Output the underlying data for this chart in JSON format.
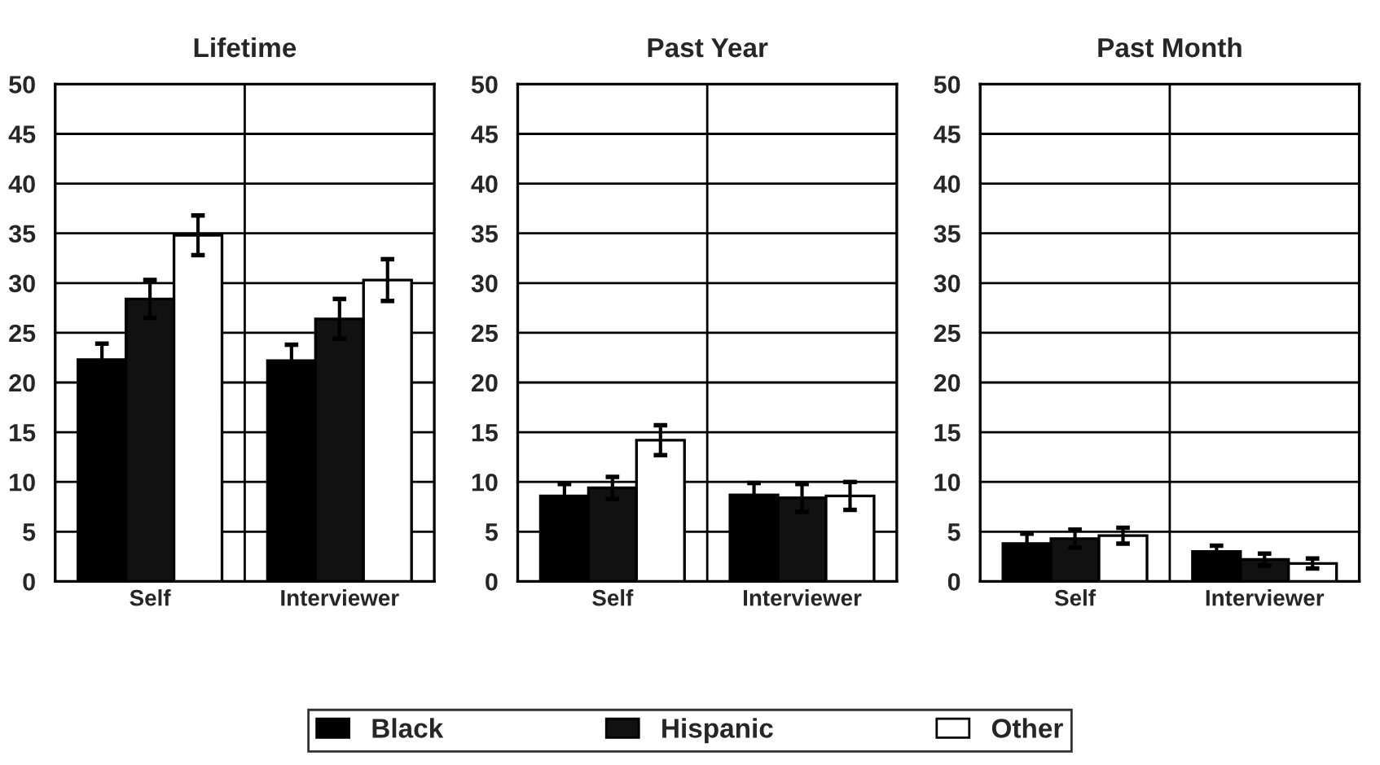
{
  "chart_data": [
    {
      "type": "bar",
      "title": "Lifetime",
      "categories": [
        "Self",
        "Interviewer"
      ],
      "ylim": [
        0,
        50
      ],
      "yticks": [
        0,
        5,
        10,
        15,
        20,
        25,
        30,
        35,
        40,
        45,
        50
      ],
      "grid": true,
      "legend": "bottom",
      "series": [
        {
          "name": "Black",
          "color": "#000000",
          "values": [
            22.3,
            22.2
          ],
          "errors": [
            1.6,
            1.6
          ]
        },
        {
          "name": "Hispanic",
          "color": "#111111",
          "values": [
            28.4,
            26.4
          ],
          "errors": [
            1.9,
            2.0
          ]
        },
        {
          "name": "Other",
          "color": "#ffffff",
          "values": [
            34.8,
            30.3
          ],
          "errors": [
            2.0,
            2.1
          ]
        }
      ]
    },
    {
      "type": "bar",
      "title": "Past Year",
      "categories": [
        "Self",
        "Interviewer"
      ],
      "ylim": [
        0,
        50
      ],
      "yticks": [
        0,
        5,
        10,
        15,
        20,
        25,
        30,
        35,
        40,
        45,
        50
      ],
      "grid": true,
      "series": [
        {
          "color": "#000000",
          "values": [
            8.6,
            8.7
          ],
          "errors": [
            1.2,
            1.2
          ]
        },
        {
          "color": "#111111",
          "values": [
            9.4,
            8.4
          ],
          "errors": [
            1.1,
            1.4
          ]
        },
        {
          "color": "#ffffff",
          "values": [
            14.2,
            8.6
          ],
          "errors": [
            1.5,
            1.4
          ]
        }
      ]
    },
    {
      "type": "bar",
      "title": "Past Month",
      "categories": [
        "Self",
        "Interviewer"
      ],
      "ylim": [
        0,
        50
      ],
      "yticks": [
        0,
        5,
        10,
        15,
        20,
        25,
        30,
        35,
        40,
        45,
        50
      ],
      "grid": true,
      "series": [
        {
          "color": "#000000",
          "values": [
            3.8,
            3.0
          ],
          "errors": [
            1.0,
            0.6
          ]
        },
        {
          "color": "#111111",
          "values": [
            4.3,
            2.2
          ],
          "errors": [
            0.9,
            0.6
          ]
        },
        {
          "color": "#ffffff",
          "values": [
            4.6,
            1.8
          ],
          "errors": [
            0.8,
            0.5
          ]
        }
      ]
    }
  ]
}
